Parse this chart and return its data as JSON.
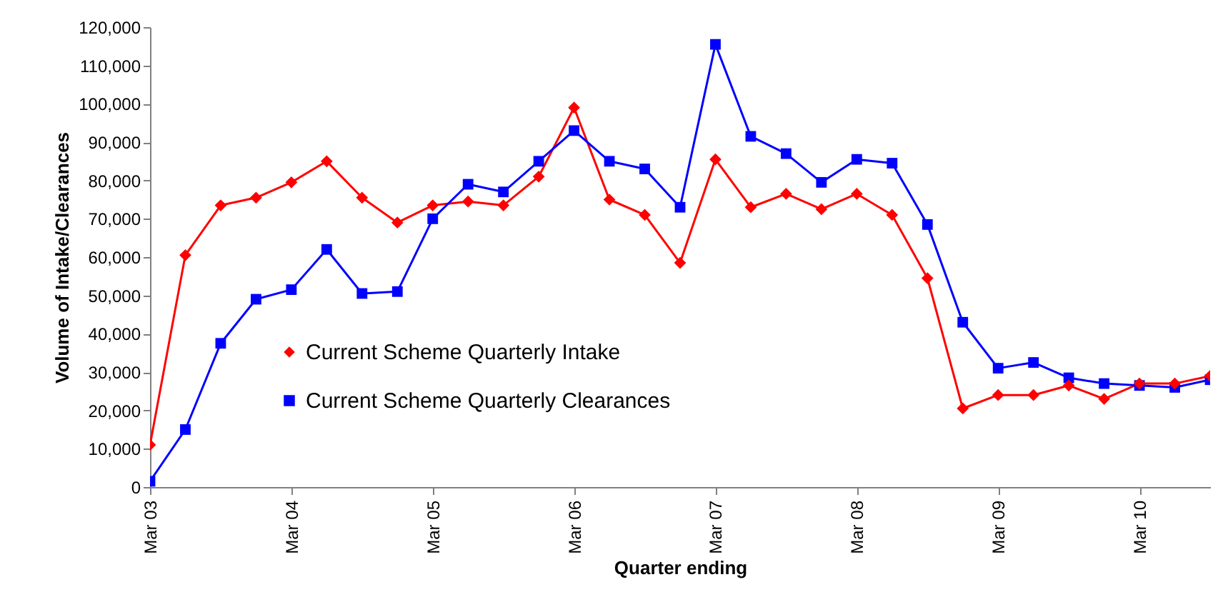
{
  "chart_data": {
    "type": "line",
    "xlabel": "Quarter ending",
    "ylabel": "Volume of Intake/Clearances",
    "categories": [
      "Mar 03",
      null,
      null,
      null,
      "Mar 04",
      null,
      null,
      null,
      "Mar 05",
      null,
      null,
      null,
      "Mar 06",
      null,
      null,
      null,
      "Mar 07",
      null,
      null,
      null,
      "Mar 08",
      null,
      null,
      null,
      "Mar 09",
      null,
      null,
      null,
      "Mar 10",
      null,
      null
    ],
    "series": [
      {
        "name": "Current Scheme Quarterly Intake",
        "color": "#ff0000",
        "marker": "diamond",
        "values": [
          11000,
          60500,
          73500,
          75500,
          79500,
          85000,
          75500,
          69000,
          73500,
          74500,
          73500,
          81000,
          99000,
          75000,
          71000,
          58500,
          85500,
          73000,
          76500,
          72500,
          76500,
          71000,
          54500,
          20500,
          24000,
          24000,
          26500,
          23000,
          27000,
          27000,
          29000
        ]
      },
      {
        "name": "Current Scheme Quarterly Clearances",
        "color": "#0000ff",
        "marker": "square",
        "values": [
          1500,
          15000,
          37500,
          49000,
          51500,
          62000,
          50500,
          51000,
          70000,
          79000,
          77000,
          85000,
          93000,
          85000,
          83000,
          73000,
          115500,
          91500,
          87000,
          79500,
          85500,
          84500,
          68500,
          43000,
          31000,
          32500,
          28500,
          27000,
          26500,
          26000,
          28000
        ]
      }
    ],
    "ylim": [
      0,
      120000
    ],
    "yticks": [
      0,
      {
        "value": 10000,
        "label": "10,000"
      },
      {
        "value": 20000,
        "label": "20,000"
      },
      {
        "value": 30000,
        "label": "30,000"
      },
      {
        "value": 40000,
        "label": "40,000"
      },
      {
        "value": 50000,
        "label": "50,000"
      },
      {
        "value": 60000,
        "label": "60,000"
      },
      {
        "value": 70000,
        "label": "70,000"
      },
      {
        "value": 80000,
        "label": "80,000"
      },
      {
        "value": 90000,
        "label": "90,000"
      },
      {
        "value": 100000,
        "label": "100,000"
      },
      {
        "value": 110000,
        "label": "110,000"
      },
      {
        "value": 120000,
        "label": "120,000"
      }
    ],
    "grid": false,
    "legend": "left",
    "line_style": "solid"
  }
}
